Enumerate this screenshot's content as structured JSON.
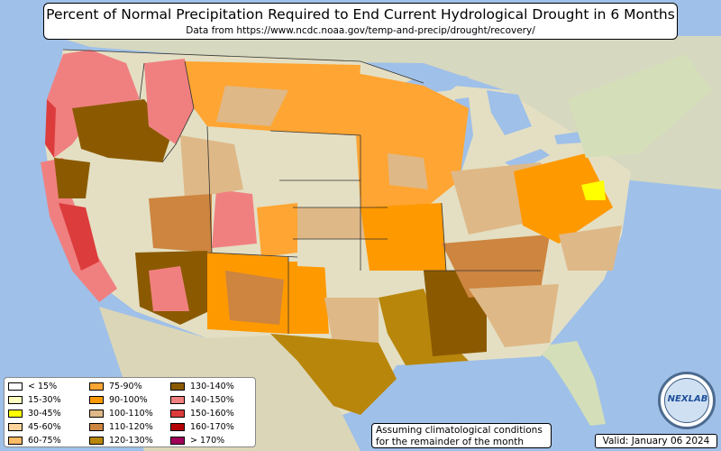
{
  "title": "Percent of Normal Precipitation Required to End Current Hydrological Drought in 6 Months",
  "subtitle": "Data from https://www.ncdc.noaa.gov/temp-and-precip/drought/recovery/",
  "note_line1": "Assuming climatological conditions",
  "note_line2": "for the remainder of the month",
  "valid": "Valid: January 06 2024",
  "logo_text": "NEXLAB",
  "colors": {
    "ocean": "#9fc0e8",
    "land": "#e4dfc3",
    "mountain": "#cbc3a4",
    "border": "#333333"
  },
  "legend": [
    {
      "label": "< 15%",
      "color": "#ffffff"
    },
    {
      "label": "15-30%",
      "color": "#ffffc0"
    },
    {
      "label": "30-45%",
      "color": "#ffff00"
    },
    {
      "label": "45-60%",
      "color": "#ffd39b"
    },
    {
      "label": "60-75%",
      "color": "#ffbb66"
    },
    {
      "label": "75-90%",
      "color": "#ffa533"
    },
    {
      "label": "90-100%",
      "color": "#ff9900"
    },
    {
      "label": "100-110%",
      "color": "#deb887"
    },
    {
      "label": "110-120%",
      "color": "#cd853f"
    },
    {
      "label": "120-130%",
      "color": "#b8860b"
    },
    {
      "label": "130-140%",
      "color": "#8b5a00"
    },
    {
      "label": "140-150%",
      "color": "#f08080"
    },
    {
      "label": "150-160%",
      "color": "#dc3c3c"
    },
    {
      "label": "160-170%",
      "color": "#b40000"
    },
    {
      "label": "> 170%",
      "color": "#a0005a"
    }
  ]
}
